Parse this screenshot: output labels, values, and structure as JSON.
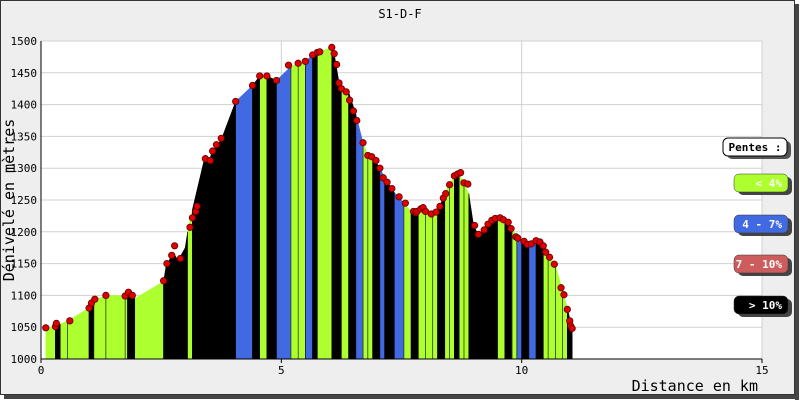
{
  "chart_data": {
    "type": "area",
    "title": "S1-D-F",
    "xlabel": "Distance en km",
    "ylabel": "Dénivelé en mètres",
    "xlim": [
      0,
      15
    ],
    "ylim": [
      1000,
      1500
    ],
    "x_ticks": [
      "0",
      "5",
      "10",
      "15"
    ],
    "y_ticks": [
      "1000",
      "1050",
      "1100",
      "1150",
      "1200",
      "1250",
      "1300",
      "1350",
      "1400",
      "1450",
      "1500"
    ],
    "grid": true,
    "legend_position": "right",
    "legend": {
      "title": "Pentes :",
      "items": [
        {
          "label": "< 4%",
          "color": "#adff2f",
          "text_color": "#ffffff"
        },
        {
          "label": "4 - 7%",
          "color": "#4169e1",
          "text_color": "#ffffff"
        },
        {
          "label": "7 - 10%",
          "color": "#cd5c5c",
          "text_color": "#ffffff"
        },
        {
          "label": "> 10%",
          "color": "#000000",
          "text_color": "#ffffff"
        }
      ]
    },
    "profile": [
      {
        "x": 0.1,
        "y": 1049,
        "slope": "lt4"
      },
      {
        "x": 0.3,
        "y": 1051,
        "slope": "lt4"
      },
      {
        "x": 0.4,
        "y": 1055,
        "slope": "gt10"
      },
      {
        "x": 0.55,
        "y": 1060,
        "slope": "lt4"
      },
      {
        "x": 1.0,
        "y": 1080,
        "slope": "lt4"
      },
      {
        "x": 1.05,
        "y": 1088,
        "slope": "gt10"
      },
      {
        "x": 1.1,
        "y": 1092,
        "slope": "gt10"
      },
      {
        "x": 1.35,
        "y": 1100,
        "slope": "lt4"
      },
      {
        "x": 1.75,
        "y": 1099,
        "slope": "lt4"
      },
      {
        "x": 1.8,
        "y": 1105,
        "slope": "lt4"
      },
      {
        "x": 1.9,
        "y": 1100,
        "slope": "gt10"
      },
      {
        "x": 1.95,
        "y": 1095,
        "slope": "gt10"
      },
      {
        "x": 2.55,
        "y": 1122,
        "slope": "lt4"
      },
      {
        "x": 2.6,
        "y": 1145,
        "slope": "gt10"
      },
      {
        "x": 2.75,
        "y": 1168,
        "slope": "gt10"
      },
      {
        "x": 2.85,
        "y": 1155,
        "slope": "gt10"
      },
      {
        "x": 3.0,
        "y": 1175,
        "slope": "gt10"
      },
      {
        "x": 3.05,
        "y": 1200,
        "slope": "gt10"
      },
      {
        "x": 3.15,
        "y": 1235,
        "slope": "lt4"
      },
      {
        "x": 3.4,
        "y": 1315,
        "slope": "gt10"
      },
      {
        "x": 3.5,
        "y": 1310,
        "slope": "gt10"
      },
      {
        "x": 3.55,
        "y": 1325,
        "slope": "gt10"
      },
      {
        "x": 3.65,
        "y": 1335,
        "slope": "gt10"
      },
      {
        "x": 3.75,
        "y": 1345,
        "slope": "gt10"
      },
      {
        "x": 4.05,
        "y": 1405,
        "slope": "gt10"
      },
      {
        "x": 4.4,
        "y": 1430,
        "slope": "lt7"
      },
      {
        "x": 4.55,
        "y": 1445,
        "slope": "gt10"
      },
      {
        "x": 4.7,
        "y": 1445,
        "slope": "lt4"
      },
      {
        "x": 4.9,
        "y": 1438,
        "slope": "gt10"
      },
      {
        "x": 5.2,
        "y": 1460,
        "slope": "lt7"
      },
      {
        "x": 5.35,
        "y": 1465,
        "slope": "lt4"
      },
      {
        "x": 5.5,
        "y": 1468,
        "slope": "lt4"
      },
      {
        "x": 5.65,
        "y": 1478,
        "slope": "lt7"
      },
      {
        "x": 5.75,
        "y": 1482,
        "slope": "gt10"
      },
      {
        "x": 6.05,
        "y": 1490,
        "slope": "lt4"
      },
      {
        "x": 6.1,
        "y": 1480,
        "slope": "gt10"
      },
      {
        "x": 6.2,
        "y": 1435,
        "slope": "gt10"
      },
      {
        "x": 6.25,
        "y": 1420,
        "slope": "gt10"
      },
      {
        "x": 6.4,
        "y": 1420,
        "slope": "lt4"
      },
      {
        "x": 6.55,
        "y": 1385,
        "slope": "gt10"
      },
      {
        "x": 6.7,
        "y": 1340,
        "slope": "lt7"
      },
      {
        "x": 6.8,
        "y": 1320,
        "slope": "lt4"
      },
      {
        "x": 6.9,
        "y": 1318,
        "slope": "lt4"
      },
      {
        "x": 7.05,
        "y": 1300,
        "slope": "gt10"
      },
      {
        "x": 7.15,
        "y": 1285,
        "slope": "lt7"
      },
      {
        "x": 7.35,
        "y": 1262,
        "slope": "gt10"
      },
      {
        "x": 7.55,
        "y": 1245,
        "slope": "lt7"
      },
      {
        "x": 7.7,
        "y": 1232,
        "slope": "lt4"
      },
      {
        "x": 7.8,
        "y": 1230,
        "slope": "gt10"
      },
      {
        "x": 7.85,
        "y": 1233,
        "slope": "gt10"
      },
      {
        "x": 8.0,
        "y": 1238,
        "slope": "lt4"
      },
      {
        "x": 8.15,
        "y": 1228,
        "slope": "lt4"
      },
      {
        "x": 8.25,
        "y": 1230,
        "slope": "lt4"
      },
      {
        "x": 8.3,
        "y": 1240,
        "slope": "gt10"
      },
      {
        "x": 8.4,
        "y": 1262,
        "slope": "gt10"
      },
      {
        "x": 8.5,
        "y": 1275,
        "slope": "lt4"
      },
      {
        "x": 8.6,
        "y": 1288,
        "slope": "lt4"
      },
      {
        "x": 8.7,
        "y": 1292,
        "slope": "gt10"
      },
      {
        "x": 8.8,
        "y": 1275,
        "slope": "lt4"
      },
      {
        "x": 8.9,
        "y": 1260,
        "slope": "lt4"
      },
      {
        "x": 9.0,
        "y": 1210,
        "slope": "gt10"
      },
      {
        "x": 9.1,
        "y": 1195,
        "slope": "gt10"
      },
      {
        "x": 9.2,
        "y": 1202,
        "slope": "gt10"
      },
      {
        "x": 9.35,
        "y": 1215,
        "slope": "gt10"
      },
      {
        "x": 9.5,
        "y": 1222,
        "slope": "gt10"
      },
      {
        "x": 9.65,
        "y": 1218,
        "slope": "lt4"
      },
      {
        "x": 9.8,
        "y": 1205,
        "slope": "gt10"
      },
      {
        "x": 9.9,
        "y": 1192,
        "slope": "lt4"
      },
      {
        "x": 10.0,
        "y": 1185,
        "slope": "lt7"
      },
      {
        "x": 10.15,
        "y": 1180,
        "slope": "gt10"
      },
      {
        "x": 10.3,
        "y": 1186,
        "slope": "lt7"
      },
      {
        "x": 10.45,
        "y": 1178,
        "slope": "gt10"
      },
      {
        "x": 10.55,
        "y": 1165,
        "slope": "lt4"
      },
      {
        "x": 10.7,
        "y": 1148,
        "slope": "lt4"
      },
      {
        "x": 10.85,
        "y": 1108,
        "slope": "lt4"
      },
      {
        "x": 10.95,
        "y": 1080,
        "slope": "lt4"
      },
      {
        "x": 11.05,
        "y": 1048,
        "slope": "gt10"
      }
    ],
    "points": [
      [
        0.1,
        1049
      ],
      [
        0.3,
        1051
      ],
      [
        0.32,
        1056
      ],
      [
        0.6,
        1060
      ],
      [
        1.0,
        1080
      ],
      [
        1.05,
        1088
      ],
      [
        1.12,
        1094
      ],
      [
        1.35,
        1100
      ],
      [
        1.75,
        1099
      ],
      [
        1.82,
        1105
      ],
      [
        1.9,
        1100
      ],
      [
        2.55,
        1123
      ],
      [
        2.62,
        1150
      ],
      [
        2.72,
        1163
      ],
      [
        2.78,
        1178
      ],
      [
        2.9,
        1158
      ],
      [
        3.1,
        1207
      ],
      [
        3.15,
        1222
      ],
      [
        3.22,
        1232
      ],
      [
        3.25,
        1240
      ],
      [
        3.42,
        1315
      ],
      [
        3.52,
        1312
      ],
      [
        3.57,
        1327
      ],
      [
        3.65,
        1337
      ],
      [
        3.75,
        1347
      ],
      [
        4.05,
        1405
      ],
      [
        4.4,
        1430
      ],
      [
        4.55,
        1445
      ],
      [
        4.7,
        1445
      ],
      [
        4.9,
        1438
      ],
      [
        5.15,
        1462
      ],
      [
        5.35,
        1465
      ],
      [
        5.5,
        1468
      ],
      [
        5.65,
        1478
      ],
      [
        5.75,
        1482
      ],
      [
        5.8,
        1483
      ],
      [
        6.05,
        1490
      ],
      [
        6.1,
        1480
      ],
      [
        6.15,
        1463
      ],
      [
        6.2,
        1434
      ],
      [
        6.25,
        1425
      ],
      [
        6.35,
        1420
      ],
      [
        6.42,
        1407
      ],
      [
        6.5,
        1390
      ],
      [
        6.57,
        1375
      ],
      [
        6.7,
        1340
      ],
      [
        6.8,
        1320
      ],
      [
        6.88,
        1318
      ],
      [
        6.97,
        1312
      ],
      [
        7.05,
        1300
      ],
      [
        7.12,
        1285
      ],
      [
        7.2,
        1278
      ],
      [
        7.3,
        1268
      ],
      [
        7.45,
        1255
      ],
      [
        7.58,
        1245
      ],
      [
        7.75,
        1232
      ],
      [
        7.8,
        1230
      ],
      [
        7.82,
        1232
      ],
      [
        7.9,
        1236
      ],
      [
        7.95,
        1238
      ],
      [
        8.0,
        1232
      ],
      [
        8.12,
        1228
      ],
      [
        8.22,
        1231
      ],
      [
        8.3,
        1240
      ],
      [
        8.37,
        1253
      ],
      [
        8.42,
        1260
      ],
      [
        8.5,
        1274
      ],
      [
        8.6,
        1288
      ],
      [
        8.67,
        1291
      ],
      [
        8.73,
        1293
      ],
      [
        8.8,
        1277
      ],
      [
        8.88,
        1275
      ],
      [
        9.02,
        1210
      ],
      [
        9.1,
        1196
      ],
      [
        9.22,
        1203
      ],
      [
        9.3,
        1212
      ],
      [
        9.38,
        1218
      ],
      [
        9.45,
        1221
      ],
      [
        9.55,
        1222
      ],
      [
        9.62,
        1219
      ],
      [
        9.72,
        1215
      ],
      [
        9.78,
        1205
      ],
      [
        9.88,
        1192
      ],
      [
        9.92,
        1190
      ],
      [
        10.05,
        1185
      ],
      [
        10.12,
        1180
      ],
      [
        10.2,
        1181
      ],
      [
        10.3,
        1186
      ],
      [
        10.38,
        1184
      ],
      [
        10.45,
        1178
      ],
      [
        10.5,
        1168
      ],
      [
        10.58,
        1160
      ],
      [
        10.68,
        1149
      ],
      [
        10.82,
        1112
      ],
      [
        10.88,
        1101
      ],
      [
        10.95,
        1078
      ],
      [
        11.0,
        1060
      ],
      [
        11.02,
        1052
      ],
      [
        11.05,
        1048
      ]
    ]
  }
}
